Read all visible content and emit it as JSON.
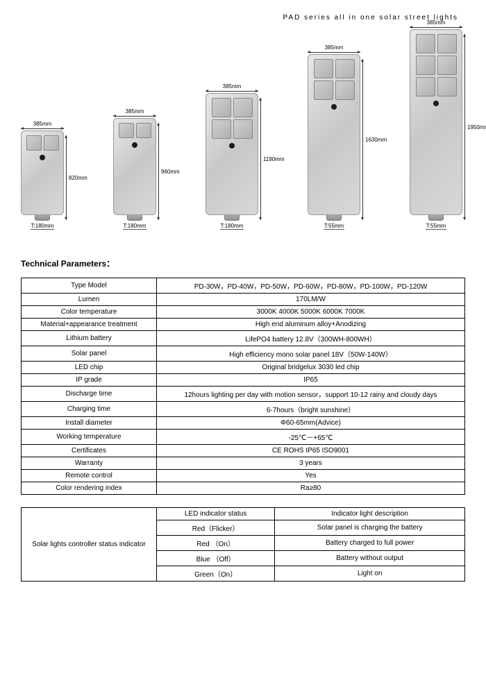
{
  "header": {
    "title": "PAD series all in one solar street lights"
  },
  "products": [
    {
      "width": "385mm",
      "height": "820mm",
      "thickness": "T:180mm",
      "body_w": 62,
      "body_h": 122,
      "led_cols": 2,
      "led_rows": 1,
      "cell": 22,
      "h_line": 122
    },
    {
      "width": "385mm",
      "height": "960mm",
      "thickness": "T:180mm",
      "body_w": 62,
      "body_h": 140,
      "led_cols": 2,
      "led_rows": 1,
      "cell": 22,
      "h_line": 140
    },
    {
      "width": "385mm",
      "height": "1190mm",
      "thickness": "T:180mm",
      "body_w": 76,
      "body_h": 176,
      "led_cols": 2,
      "led_rows": 2,
      "cell": 28,
      "h_line": 176
    },
    {
      "width": "385mm",
      "height": "1630mm",
      "thickness": "T:55mm",
      "body_w": 76,
      "body_h": 232,
      "led_cols": 2,
      "led_rows": 2,
      "cell": 28,
      "h_line": 232
    },
    {
      "width": "385mm",
      "height": "1950mm",
      "thickness": "T:55mm",
      "body_w": 76,
      "body_h": 268,
      "led_cols": 2,
      "led_rows": 3,
      "cell": 28,
      "h_line": 268
    }
  ],
  "section_title": "Technical Parameters：",
  "spec_rows": [
    {
      "label": "Type Model",
      "value": "PD-30W，PD-40W，PD-50W，PD-60W，PD-80W，PD-100W，PD-120W"
    },
    {
      "label": "Lumen",
      "value": "170LM/W"
    },
    {
      "label": "Color temperature",
      "value": "3000K    4000K    5000K    6000K    7000K"
    },
    {
      "label": "Material+appearance treatment",
      "value": "High end aluminum alloy+Anodizing"
    },
    {
      "label": "Lithium battery",
      "value": "LifePO4 battery 12.8V（300WH-800WH）"
    },
    {
      "label": "Solar panel",
      "value": "High efficiency mono solar panel 18V（50W-140W）"
    },
    {
      "label": "LED chip",
      "value": "Original bridgelux 3030 led chip"
    },
    {
      "label": "IP grade",
      "value": "IP65"
    },
    {
      "label": "Discharge time",
      "value": "12hours lighting per day with motion sensor，support 10-12 rainy and cloudy days"
    },
    {
      "label": "Charging time",
      "value": "6-7hours（bright sunshine）"
    },
    {
      "label": "Install diameter",
      "value": "Φ60-65mm(Advice)"
    },
    {
      "label": "Working temperature",
      "value": "-25℃－+65℃"
    },
    {
      "label": "Certificates",
      "value": "CE    ROHS    IP65 ISO9001"
    },
    {
      "label": "Warranty",
      "value": "3 years"
    },
    {
      "label": "Remote control",
      "value": "Yes"
    },
    {
      "label": "Color rendering index",
      "value": "Ra≥80"
    }
  ],
  "indicator_table": {
    "row_label": "Solar lights controller status indicator",
    "header": {
      "c1": "LED indicator status",
      "c2": "Indicator light description"
    },
    "rows": [
      {
        "c1": "Red（Flicker）",
        "c2": "Solar panel is charging the battery"
      },
      {
        "c1": "Red （On）",
        "c2": "Battery charged to full power"
      },
      {
        "c1": "Blue （Off）",
        "c2": "Battery without output"
      },
      {
        "c1": "Green（On）",
        "c2": "Light on"
      }
    ]
  },
  "colors": {
    "text": "#000000",
    "border": "#000000",
    "light_body": "#d0d0d0"
  }
}
